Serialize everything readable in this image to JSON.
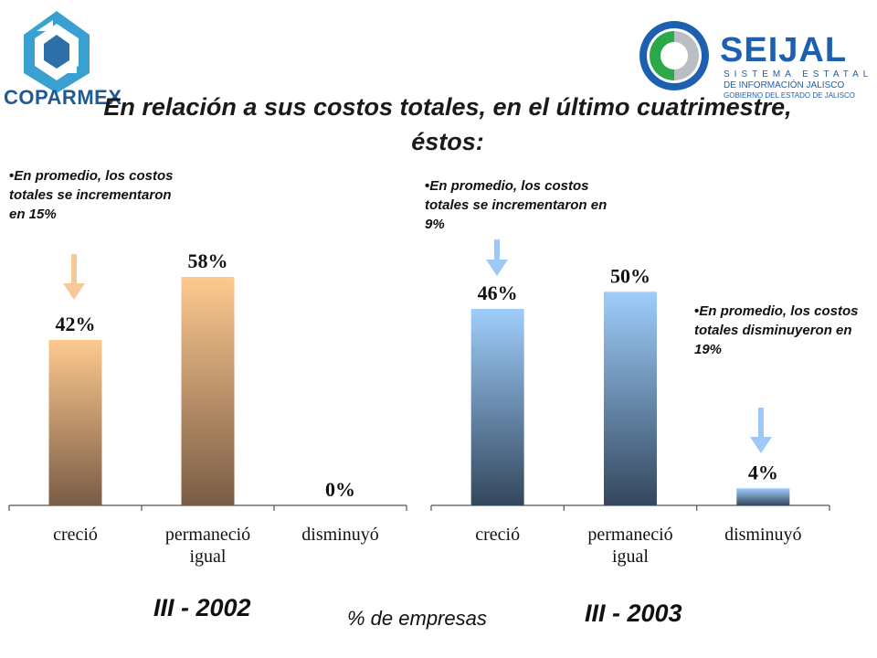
{
  "header": {
    "left_logo_text": "COPARMEX",
    "right_logo": {
      "name": "SEIJAL",
      "line1": "SISTEMA ESTATAL",
      "line2": "DE INFORMACIÓN JALISCO",
      "line3": "GOBIERNO DEL ESTADO DE JALISCO"
    }
  },
  "title": "En relación a sus costos totales, en el último cuatrimestre, éstos:",
  "notes": {
    "left": "En promedio, los costos totales se incrementaron en 15%",
    "middle": "En promedio, los costos totales se incrementaron en 9%",
    "right": "En promedio, los costos totales disminuyeron  en 19%"
  },
  "footer": {
    "left_period": "III - 2002",
    "units": "% de empresas",
    "right_period": "III - 2003"
  },
  "colors": {
    "left_top": "#fdc98f",
    "left_bottom": "#7a5c45",
    "right_top": "#9fcdfb",
    "right_bottom": "#33475d",
    "arrow_left": "#f7c89a",
    "arrow_right": "#9ec8f5"
  },
  "chart_data": [
    {
      "type": "bar",
      "title": "III - 2002",
      "categories": [
        "creció",
        "permaneció igual",
        "disminuyó"
      ],
      "values": [
        42,
        58,
        0
      ],
      "value_labels": [
        "42%",
        "58%",
        "0%"
      ],
      "ylim": [
        0,
        80
      ],
      "grid": false
    },
    {
      "type": "bar",
      "title": "III - 2003",
      "categories": [
        "creció",
        "permaneció igual",
        "disminuyó"
      ],
      "values": [
        46,
        50,
        4
      ],
      "value_labels": [
        "46%",
        "50%",
        "4%"
      ],
      "ylim": [
        0,
        62
      ],
      "grid": false
    }
  ]
}
